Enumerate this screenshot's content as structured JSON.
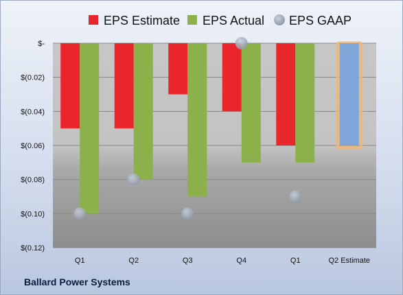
{
  "footer": {
    "company": "Ballard Power Systems"
  },
  "chart_data": {
    "type": "bar",
    "categories": [
      "Q1",
      "Q2",
      "Q3",
      "Q4",
      "Q1",
      "Q2 Estimate"
    ],
    "series": [
      {
        "name": "EPS Estimate",
        "color": "#e8262b",
        "values": [
          -0.05,
          -0.05,
          -0.03,
          -0.04,
          -0.06,
          null
        ]
      },
      {
        "name": "EPS Actual",
        "color": "#8cb04a",
        "values": [
          -0.1,
          -0.08,
          -0.09,
          -0.07,
          -0.07,
          -0.06
        ]
      },
      {
        "name": "EPS GAAP",
        "color": "#a9b3c4",
        "marker": "circle",
        "values": [
          -0.1,
          -0.08,
          -0.1,
          0.0,
          -0.09,
          null
        ]
      }
    ],
    "estimate_bar": {
      "category": "Q2 Estimate",
      "fill": "#7ea6d8",
      "outline": "#f2b574"
    },
    "y_ticks": [
      "$-",
      "$(0.02)",
      "$(0.04)",
      "$(0.06)",
      "$(0.08)",
      "$(0.10)",
      "$(0.12)"
    ],
    "y_tick_values": [
      0,
      -0.02,
      -0.04,
      -0.06,
      -0.08,
      -0.1,
      -0.12
    ],
    "ylim": [
      -0.12,
      0
    ],
    "grid": true,
    "legend_position": "top"
  }
}
